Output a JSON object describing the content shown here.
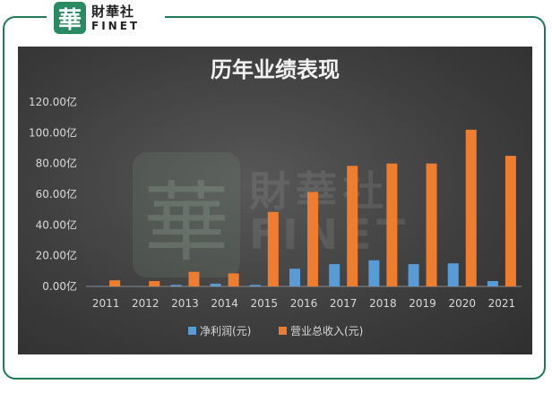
{
  "logo": {
    "glyph": "華",
    "name_cn": "財華社",
    "name_en": "FINET"
  },
  "watermark": {
    "glyph": "華",
    "name_cn": "財華社",
    "name_en": "FINET"
  },
  "colors": {
    "frame": "#1f7a55",
    "series_profit": "#5b9bd5",
    "series_revenue": "#ed7d31"
  },
  "chart_data": {
    "type": "bar",
    "title": "历年业绩表现",
    "categories": [
      "2011",
      "2012",
      "2013",
      "2014",
      "2015",
      "2016",
      "2017",
      "2018",
      "2019",
      "2020",
      "2021"
    ],
    "series": [
      {
        "name": "净利润(元)",
        "values": [
          0.3,
          0.2,
          1.0,
          1.8,
          1.0,
          11.5,
          14.5,
          17.0,
          14.5,
          15.0,
          3.5
        ]
      },
      {
        "name": "营业总收入(元)",
        "values": [
          4.0,
          3.5,
          9.5,
          8.5,
          48.5,
          61.5,
          78.5,
          80.0,
          80.0,
          102.0,
          85.0
        ]
      }
    ],
    "yticks": [
      "0.00亿",
      "20.00亿",
      "40.00亿",
      "60.00亿",
      "80.00亿",
      "100.00亿",
      "120.00亿"
    ],
    "ylim": [
      0,
      120
    ],
    "grid": false,
    "legend": "bottom"
  }
}
